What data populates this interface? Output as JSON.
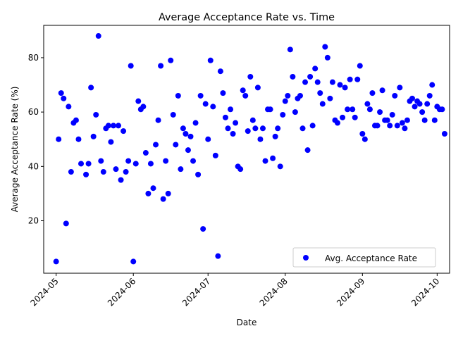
{
  "chart_data": {
    "type": "scatter",
    "title": "Average Acceptance Rate vs. Time",
    "xlabel": "Date",
    "ylabel": "Average Acceptance Rate (%)",
    "x_ticks": [
      "2024-05",
      "2024-06",
      "2024-07",
      "2024-08",
      "2024-09",
      "2024-10"
    ],
    "y_ticks": [
      20,
      40,
      60,
      80
    ],
    "xlim": [
      "2024-04-26",
      "2024-10-06"
    ],
    "ylim": [
      0.7,
      91.9
    ],
    "grid": false,
    "legend_position": "lower right",
    "series": [
      {
        "name": "Avg. Acceptance Rate",
        "color": "#0000ff",
        "marker": "circle",
        "points": [
          [
            "2024-05-01",
            5
          ],
          [
            "2024-05-02",
            50
          ],
          [
            "2024-05-03",
            67
          ],
          [
            "2024-05-04",
            65
          ],
          [
            "2024-05-05",
            19
          ],
          [
            "2024-05-06",
            62
          ],
          [
            "2024-05-07",
            38
          ],
          [
            "2024-05-08",
            56
          ],
          [
            "2024-05-09",
            57
          ],
          [
            "2024-05-10",
            50
          ],
          [
            "2024-05-11",
            41
          ],
          [
            "2024-05-13",
            37
          ],
          [
            "2024-05-14",
            41
          ],
          [
            "2024-05-15",
            69
          ],
          [
            "2024-05-16",
            51
          ],
          [
            "2024-05-17",
            59
          ],
          [
            "2024-05-18",
            88
          ],
          [
            "2024-05-19",
            42
          ],
          [
            "2024-05-20",
            38
          ],
          [
            "2024-05-21",
            54
          ],
          [
            "2024-05-22",
            55
          ],
          [
            "2024-05-23",
            49
          ],
          [
            "2024-05-24",
            55
          ],
          [
            "2024-05-25",
            39
          ],
          [
            "2024-05-26",
            55
          ],
          [
            "2024-05-27",
            35
          ],
          [
            "2024-05-28",
            53
          ],
          [
            "2024-05-29",
            38
          ],
          [
            "2024-05-30",
            42
          ],
          [
            "2024-05-31",
            77
          ],
          [
            "2024-06-01",
            5
          ],
          [
            "2024-06-02",
            41
          ],
          [
            "2024-06-03",
            64
          ],
          [
            "2024-06-04",
            61
          ],
          [
            "2024-06-05",
            62
          ],
          [
            "2024-06-06",
            45
          ],
          [
            "2024-06-07",
            30
          ],
          [
            "2024-06-08",
            41
          ],
          [
            "2024-06-09",
            32
          ],
          [
            "2024-06-10",
            48
          ],
          [
            "2024-06-11",
            57
          ],
          [
            "2024-06-12",
            77
          ],
          [
            "2024-06-13",
            28
          ],
          [
            "2024-06-14",
            42
          ],
          [
            "2024-06-15",
            30
          ],
          [
            "2024-06-16",
            79
          ],
          [
            "2024-06-17",
            59
          ],
          [
            "2024-06-18",
            48
          ],
          [
            "2024-06-19",
            66
          ],
          [
            "2024-06-20",
            39
          ],
          [
            "2024-06-21",
            54
          ],
          [
            "2024-06-22",
            52
          ],
          [
            "2024-06-23",
            46
          ],
          [
            "2024-06-24",
            51
          ],
          [
            "2024-06-25",
            42
          ],
          [
            "2024-06-26",
            56
          ],
          [
            "2024-06-27",
            37
          ],
          [
            "2024-06-28",
            66
          ],
          [
            "2024-06-29",
            17
          ],
          [
            "2024-06-30",
            63
          ],
          [
            "2024-07-01",
            50
          ],
          [
            "2024-07-02",
            79
          ],
          [
            "2024-07-03",
            62
          ],
          [
            "2024-07-04",
            44
          ],
          [
            "2024-07-05",
            7
          ],
          [
            "2024-07-06",
            75
          ],
          [
            "2024-07-07",
            67
          ],
          [
            "2024-07-08",
            58
          ],
          [
            "2024-07-09",
            54
          ],
          [
            "2024-07-10",
            61
          ],
          [
            "2024-07-11",
            52
          ],
          [
            "2024-07-12",
            56
          ],
          [
            "2024-07-13",
            40
          ],
          [
            "2024-07-14",
            39
          ],
          [
            "2024-07-15",
            68
          ],
          [
            "2024-07-16",
            66
          ],
          [
            "2024-07-17",
            53
          ],
          [
            "2024-07-18",
            73
          ],
          [
            "2024-07-19",
            57
          ],
          [
            "2024-07-20",
            54
          ],
          [
            "2024-07-21",
            69
          ],
          [
            "2024-07-22",
            50
          ],
          [
            "2024-07-23",
            54
          ],
          [
            "2024-07-24",
            42
          ],
          [
            "2024-07-25",
            61
          ],
          [
            "2024-07-26",
            61
          ],
          [
            "2024-07-27",
            43
          ],
          [
            "2024-07-28",
            51
          ],
          [
            "2024-07-29",
            54
          ],
          [
            "2024-07-30",
            40
          ],
          [
            "2024-07-31",
            59
          ],
          [
            "2024-08-01",
            64
          ],
          [
            "2024-08-02",
            66
          ],
          [
            "2024-08-03",
            83
          ],
          [
            "2024-08-04",
            73
          ],
          [
            "2024-08-05",
            60
          ],
          [
            "2024-08-06",
            65
          ],
          [
            "2024-08-07",
            66
          ],
          [
            "2024-08-08",
            54
          ],
          [
            "2024-08-09",
            71
          ],
          [
            "2024-08-10",
            46
          ],
          [
            "2024-08-11",
            73
          ],
          [
            "2024-08-12",
            55
          ],
          [
            "2024-08-13",
            76
          ],
          [
            "2024-08-14",
            71
          ],
          [
            "2024-08-15",
            67
          ],
          [
            "2024-08-16",
            63
          ],
          [
            "2024-08-17",
            84
          ],
          [
            "2024-08-18",
            80
          ],
          [
            "2024-08-19",
            65
          ],
          [
            "2024-08-20",
            71
          ],
          [
            "2024-08-21",
            57
          ],
          [
            "2024-08-22",
            56
          ],
          [
            "2024-08-23",
            70
          ],
          [
            "2024-08-24",
            58
          ],
          [
            "2024-08-25",
            69
          ],
          [
            "2024-08-26",
            61
          ],
          [
            "2024-08-27",
            72
          ],
          [
            "2024-08-28",
            61
          ],
          [
            "2024-08-29",
            58
          ],
          [
            "2024-08-30",
            72
          ],
          [
            "2024-08-31",
            77
          ],
          [
            "2024-09-01",
            52
          ],
          [
            "2024-09-02",
            50
          ],
          [
            "2024-09-03",
            63
          ],
          [
            "2024-09-04",
            61
          ],
          [
            "2024-09-05",
            67
          ],
          [
            "2024-09-06",
            55
          ],
          [
            "2024-09-07",
            55
          ],
          [
            "2024-09-08",
            60
          ],
          [
            "2024-09-09",
            68
          ],
          [
            "2024-09-10",
            57
          ],
          [
            "2024-09-11",
            57
          ],
          [
            "2024-09-12",
            55
          ],
          [
            "2024-09-13",
            59
          ],
          [
            "2024-09-14",
            66
          ],
          [
            "2024-09-15",
            55
          ],
          [
            "2024-09-16",
            69
          ],
          [
            "2024-09-17",
            56
          ],
          [
            "2024-09-18",
            54
          ],
          [
            "2024-09-19",
            57
          ],
          [
            "2024-09-20",
            64
          ],
          [
            "2024-09-21",
            65
          ],
          [
            "2024-09-22",
            62
          ],
          [
            "2024-09-23",
            64
          ],
          [
            "2024-09-24",
            63
          ],
          [
            "2024-09-25",
            60
          ],
          [
            "2024-09-26",
            57
          ],
          [
            "2024-09-27",
            63
          ],
          [
            "2024-09-28",
            66
          ],
          [
            "2024-09-29",
            70
          ],
          [
            "2024-09-30",
            57
          ],
          [
            "2024-10-01",
            62
          ],
          [
            "2024-10-02",
            61
          ],
          [
            "2024-10-03",
            61
          ],
          [
            "2024-10-04",
            52
          ]
        ]
      }
    ]
  }
}
